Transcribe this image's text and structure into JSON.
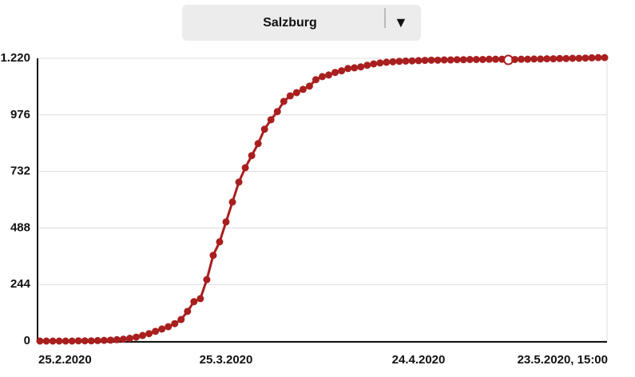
{
  "dropdown": "Salzburg",
  "chart_data": {
    "type": "line",
    "categories": [
      "25.2.2020",
      null,
      null,
      null,
      null,
      null,
      null,
      null,
      null,
      null,
      null,
      null,
      null,
      null,
      null,
      null,
      null,
      null,
      null,
      null,
      null,
      null,
      null,
      null,
      null,
      null,
      null,
      null,
      null,
      "25.3.2020",
      null,
      null,
      null,
      null,
      null,
      null,
      null,
      null,
      null,
      null,
      null,
      null,
      null,
      null,
      null,
      null,
      null,
      null,
      null,
      null,
      null,
      null,
      null,
      null,
      null,
      null,
      null,
      null,
      null,
      "24.4.2020",
      null,
      null,
      null,
      null,
      null,
      null,
      null,
      null,
      null,
      null,
      null,
      null,
      null,
      null,
      null,
      null,
      null,
      null,
      null,
      null,
      null,
      null,
      null,
      null,
      null,
      null,
      null,
      null,
      "23.5.2020, 15:00"
    ],
    "values": [
      0,
      0,
      0,
      0,
      0,
      0,
      1,
      1,
      1,
      2,
      3,
      4,
      6,
      8,
      12,
      17,
      24,
      32,
      42,
      52,
      62,
      75,
      93,
      128,
      170,
      183,
      265,
      370,
      428,
      514,
      600,
      686,
      748,
      800,
      852,
      914,
      955,
      990,
      1034,
      1058,
      1072,
      1086,
      1100,
      1128,
      1141,
      1148,
      1159,
      1166,
      1176,
      1179,
      1183,
      1190,
      1196,
      1200,
      1203,
      1205,
      1207,
      1208,
      1209,
      1210,
      1211,
      1212,
      1212,
      1213,
      1213,
      1214,
      1214,
      1215,
      1215,
      1215,
      1216,
      1216,
      1216,
      1213,
      1215,
      1216,
      1216,
      1217,
      1217,
      1218,
      1218,
      1219,
      1219,
      1220,
      1220,
      1221,
      1222,
      1223,
      1223
    ],
    "color": "#a91f1f",
    "highlight": 73,
    "ylim": [
      0,
      1220
    ],
    "yticks": [
      0,
      244,
      488,
      732,
      976,
      {
        "value": 1220,
        "label": "1.220"
      }
    ],
    "grid": true
  }
}
